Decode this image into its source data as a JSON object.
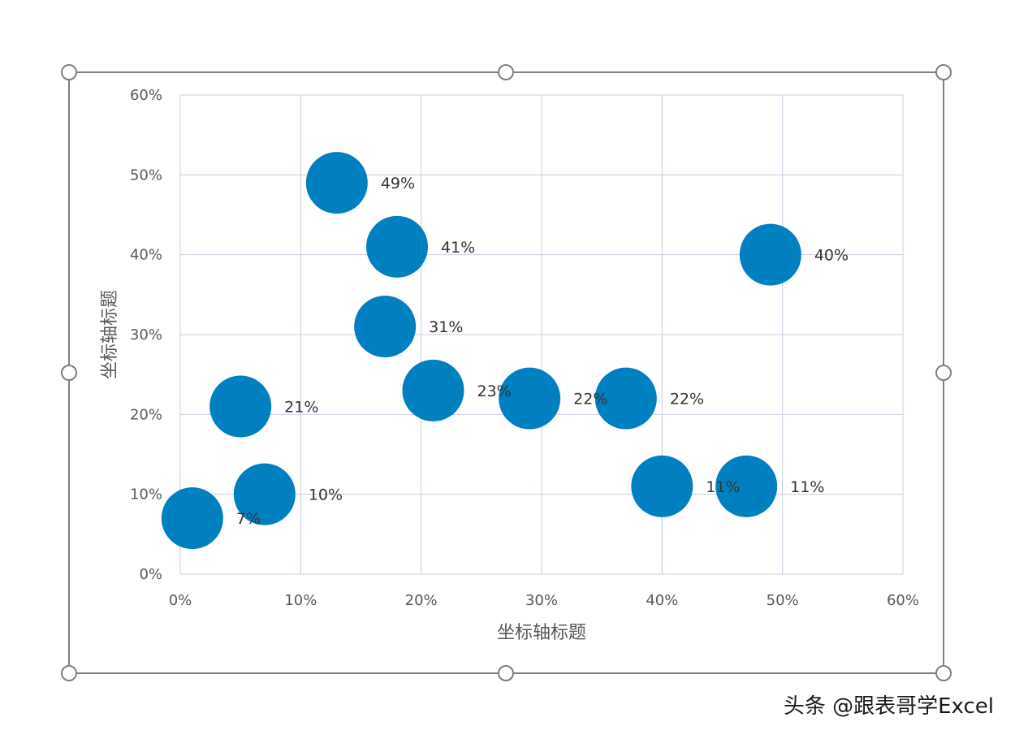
{
  "chart_data": {
    "type": "scatter",
    "series": [
      {
        "color": "#0080C0",
        "points": [
          {
            "x": 0.01,
            "y": 0.07,
            "label": "7%"
          },
          {
            "x": 0.05,
            "y": 0.21,
            "label": "21%"
          },
          {
            "x": 0.07,
            "y": 0.1,
            "label": "10%"
          },
          {
            "x": 0.13,
            "y": 0.49,
            "label": "49%"
          },
          {
            "x": 0.17,
            "y": 0.31,
            "label": "31%"
          },
          {
            "x": 0.18,
            "y": 0.41,
            "label": "41%"
          },
          {
            "x": 0.21,
            "y": 0.23,
            "label": "23%"
          },
          {
            "x": 0.29,
            "y": 0.22,
            "label": "22%"
          },
          {
            "x": 0.37,
            "y": 0.22,
            "label": "22%"
          },
          {
            "x": 0.4,
            "y": 0.11,
            "label": "11%"
          },
          {
            "x": 0.47,
            "y": 0.11,
            "label": "11%"
          },
          {
            "x": 0.49,
            "y": 0.4,
            "label": "40%"
          }
        ]
      }
    ],
    "xlabel": "坐标轴标题",
    "ylabel": "坐标轴标题",
    "xlim": [
      0,
      0.6
    ],
    "ylim": [
      0,
      0.6
    ],
    "x_ticks": [
      "0%",
      "10%",
      "20%",
      "30%",
      "40%",
      "50%",
      "60%"
    ],
    "y_ticks": [
      "0%",
      "10%",
      "20%",
      "30%",
      "40%",
      "50%",
      "60%"
    ],
    "grid": true,
    "marker": "large-circle"
  },
  "watermark": "头条 @跟表哥学Excel",
  "colors": {
    "marker": "#0080C0",
    "grid": "#C9CDE0",
    "frame": "#7F7F7F",
    "text": "#595959"
  }
}
